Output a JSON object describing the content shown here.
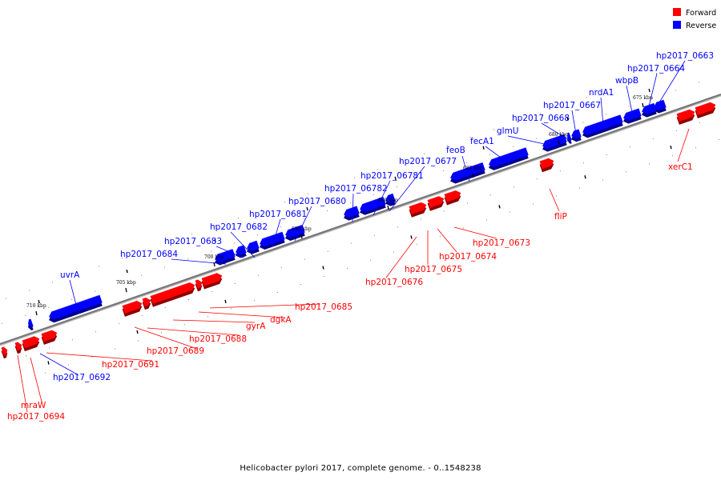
{
  "colors": {
    "forward": "#ff0000",
    "reverse": "#0000ff",
    "backbone": "#888888"
  },
  "legend": [
    {
      "key": "forward",
      "label": "Forward"
    },
    {
      "key": "reverse",
      "label": "Reverse"
    }
  ],
  "caption": "Helicobacter pylori 2017, complete genome. - 0..1548238",
  "ticks": [
    "675 kbp",
    "680 kbp",
    "685 kbp",
    "690 kbp",
    "695 kbp",
    "700 kbp",
    "705 kbp",
    "710 kbp"
  ],
  "genes": [
    {
      "label": "hp2017_0663",
      "strand": "reverse"
    },
    {
      "label": "hp2017_0664",
      "strand": "reverse"
    },
    {
      "label": "wbpB",
      "strand": "reverse"
    },
    {
      "label": "nrdA1",
      "strand": "reverse"
    },
    {
      "label": "hp2017_0667",
      "strand": "reverse"
    },
    {
      "label": "hp2017_0668",
      "strand": "reverse"
    },
    {
      "label": "glmU",
      "strand": "reverse"
    },
    {
      "label": "fecA1",
      "strand": "reverse"
    },
    {
      "label": "feoB",
      "strand": "reverse"
    },
    {
      "label": "hp2017_0677",
      "strand": "reverse"
    },
    {
      "label": "hp2017_06781",
      "strand": "reverse"
    },
    {
      "label": "hp2017_06782",
      "strand": "reverse"
    },
    {
      "label": "hp2017_0680",
      "strand": "reverse"
    },
    {
      "label": "hp2017_0681",
      "strand": "reverse"
    },
    {
      "label": "hp2017_0682",
      "strand": "reverse"
    },
    {
      "label": "hp2017_0683",
      "strand": "reverse"
    },
    {
      "label": "hp2017_0684",
      "strand": "reverse"
    },
    {
      "label": "uvrA",
      "strand": "reverse"
    },
    {
      "label": "hp2017_0692",
      "strand": "reverse"
    },
    {
      "label": "xerC1",
      "strand": "forward"
    },
    {
      "label": "fliP",
      "strand": "forward"
    },
    {
      "label": "hp2017_0673",
      "strand": "forward"
    },
    {
      "label": "hp2017_0674",
      "strand": "forward"
    },
    {
      "label": "hp2017_0675",
      "strand": "forward"
    },
    {
      "label": "hp2017_0676",
      "strand": "forward"
    },
    {
      "label": "hp2017_0685",
      "strand": "forward"
    },
    {
      "label": "dgkA",
      "strand": "forward"
    },
    {
      "label": "gyrA",
      "strand": "forward"
    },
    {
      "label": "hp2017_0688",
      "strand": "forward"
    },
    {
      "label": "hp2017_0689",
      "strand": "forward"
    },
    {
      "label": "hp2017_0691",
      "strand": "forward"
    },
    {
      "label": "mraW",
      "strand": "forward"
    },
    {
      "label": "hp2017_0694",
      "strand": "forward"
    }
  ]
}
